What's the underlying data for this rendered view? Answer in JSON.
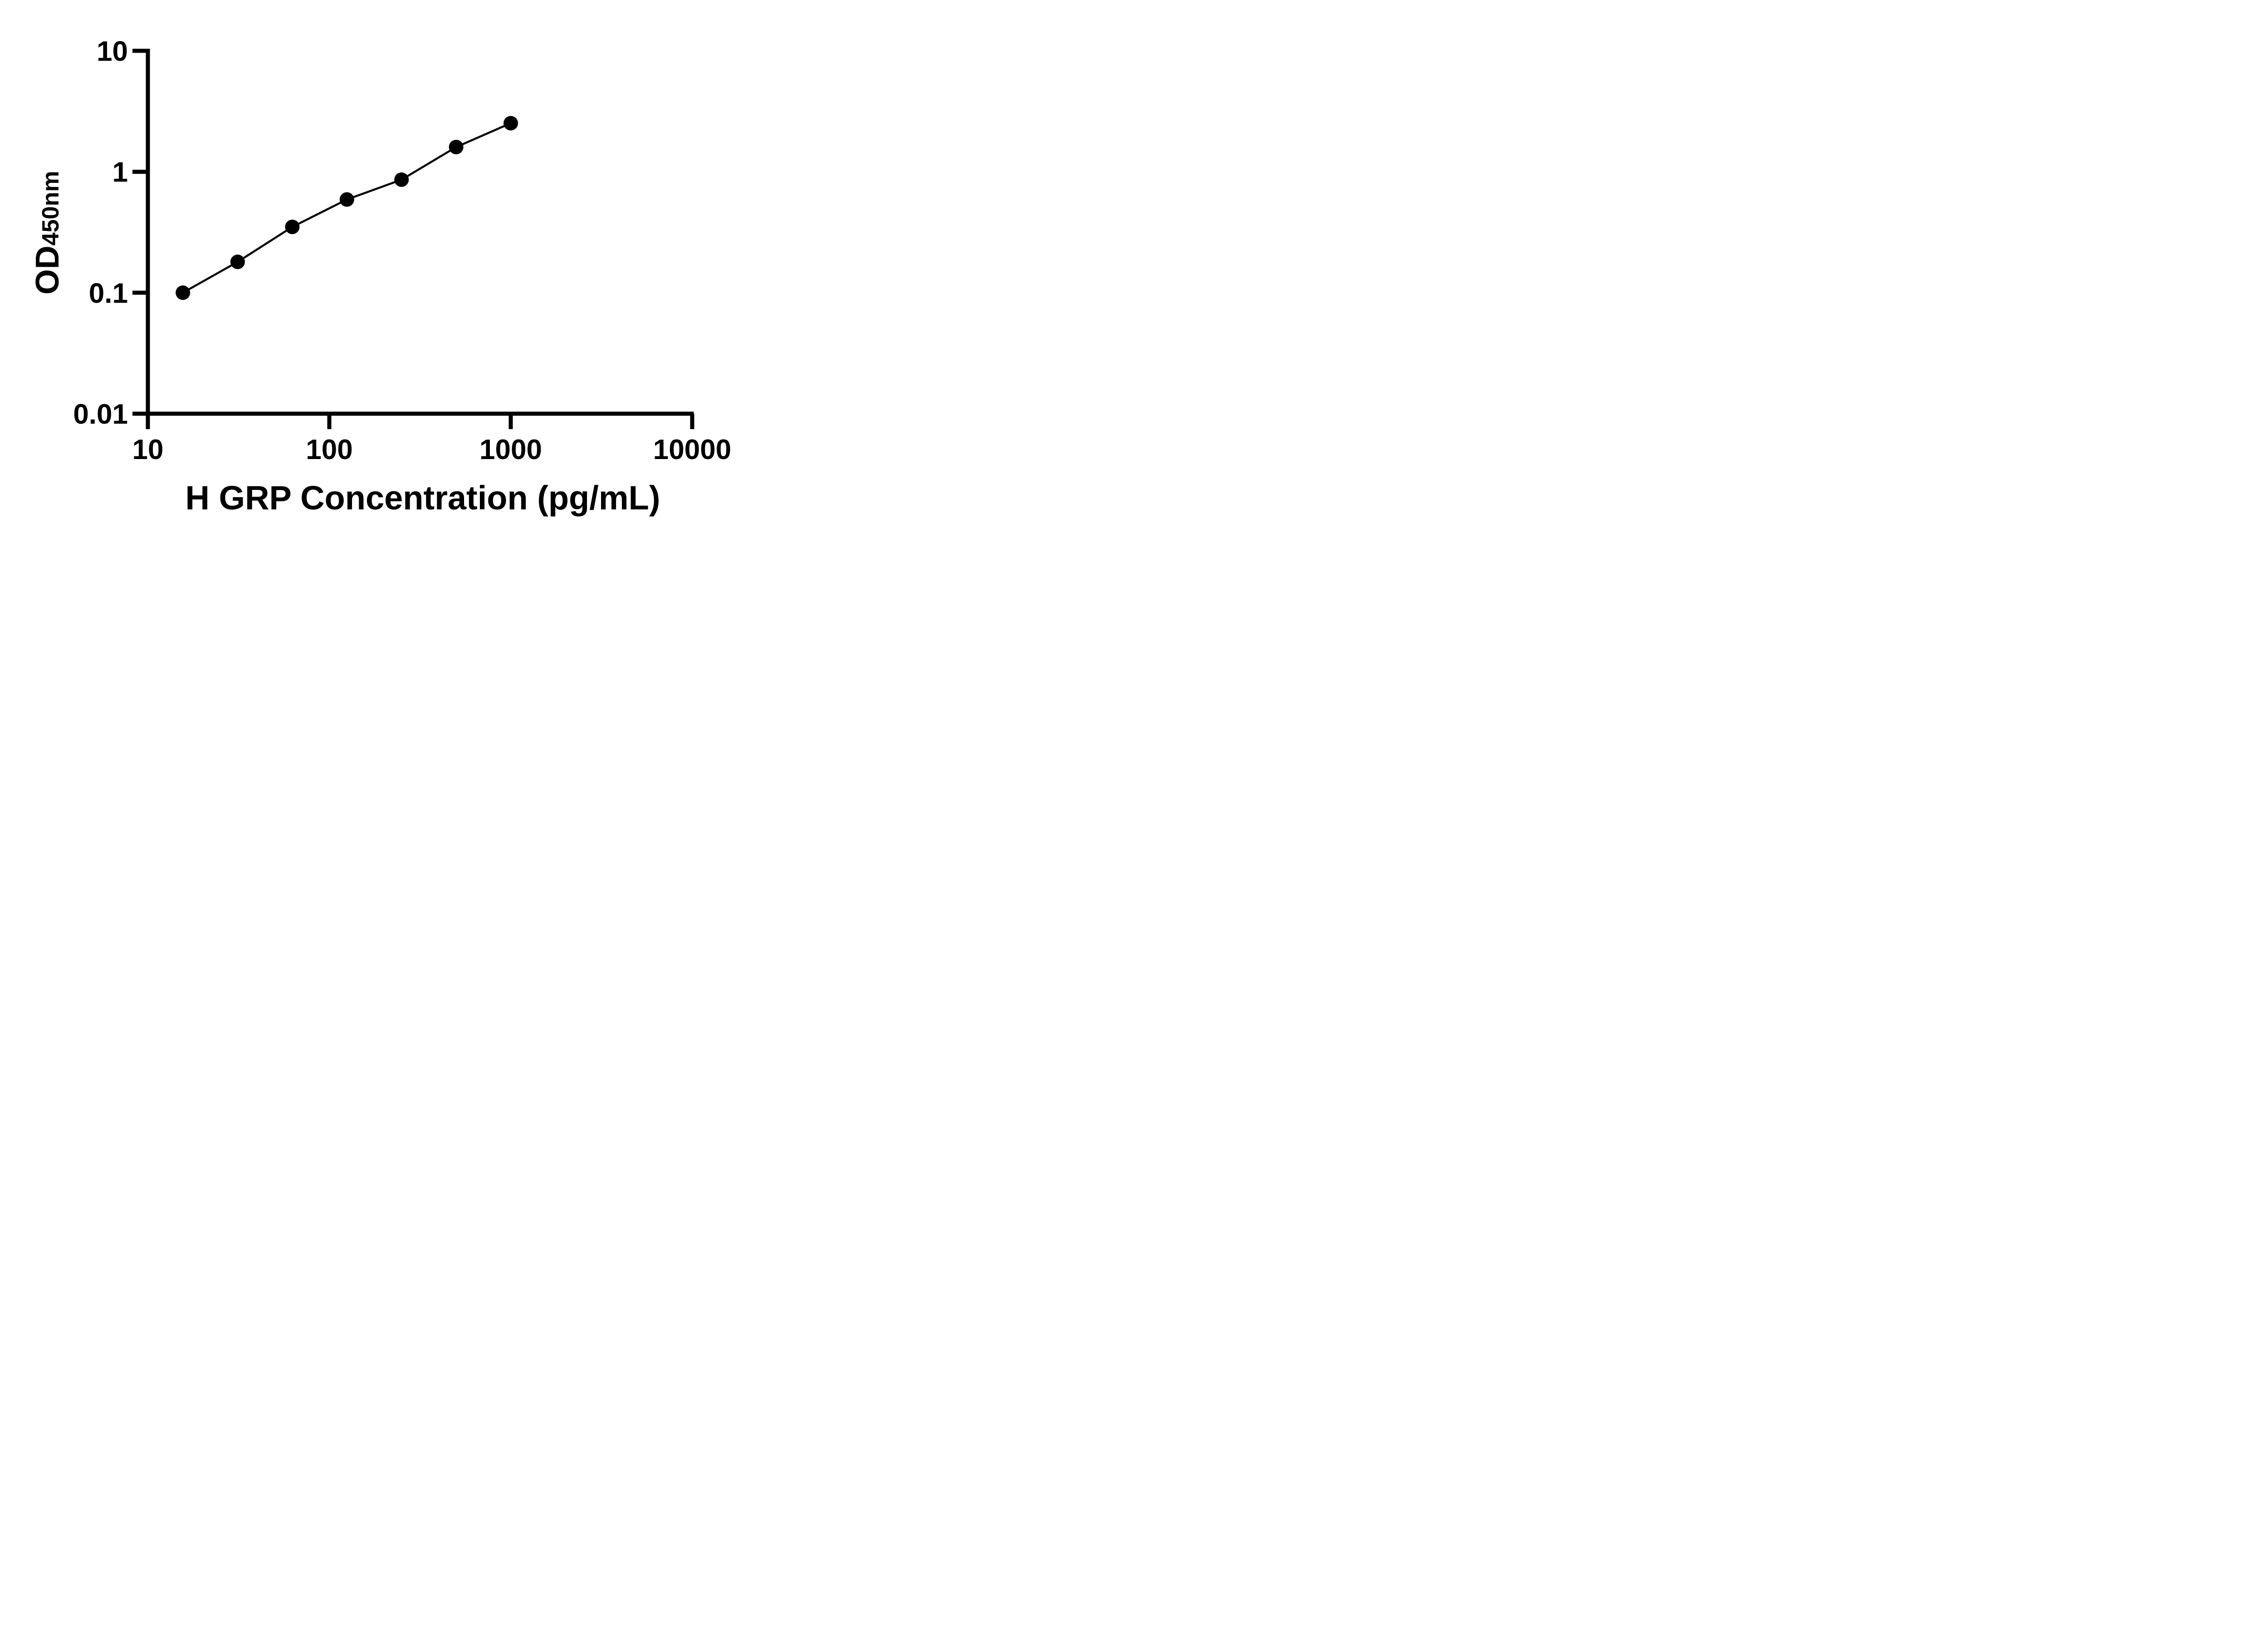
{
  "figure": {
    "background_color": "#ffffff",
    "foreground_color": "#000000"
  },
  "chart_data": {
    "type": "scatter",
    "title": "",
    "xlabel": "H GRP Concentration (pg/mL)",
    "ylabel": "OD",
    "ylabel_subscript": "450nm",
    "x_scale": "log",
    "y_scale": "log",
    "xlim": [
      10,
      10000
    ],
    "ylim": [
      0.01,
      10
    ],
    "grid": false,
    "legend": false,
    "marker": "filled-circle",
    "line_style": "solid",
    "color": "#000000",
    "x_ticks": [
      {
        "value": 10,
        "label": "10"
      },
      {
        "value": 100,
        "label": "100"
      },
      {
        "value": 1000,
        "label": "1000"
      },
      {
        "value": 10000,
        "label": "10000"
      }
    ],
    "y_ticks": [
      {
        "value": 10,
        "label": "10"
      },
      {
        "value": 1,
        "label": "1"
      },
      {
        "value": 0.1,
        "label": "0.1"
      },
      {
        "value": 0.01,
        "label": "0.01"
      }
    ],
    "series": [
      {
        "points": [
          {
            "x": 15.6,
            "y": 0.1
          },
          {
            "x": 31.25,
            "y": 0.18
          },
          {
            "x": 62.5,
            "y": 0.35
          },
          {
            "x": 125,
            "y": 0.59
          },
          {
            "x": 250,
            "y": 0.86
          },
          {
            "x": 500,
            "y": 1.6
          },
          {
            "x": 1000,
            "y": 2.52
          }
        ]
      }
    ]
  }
}
